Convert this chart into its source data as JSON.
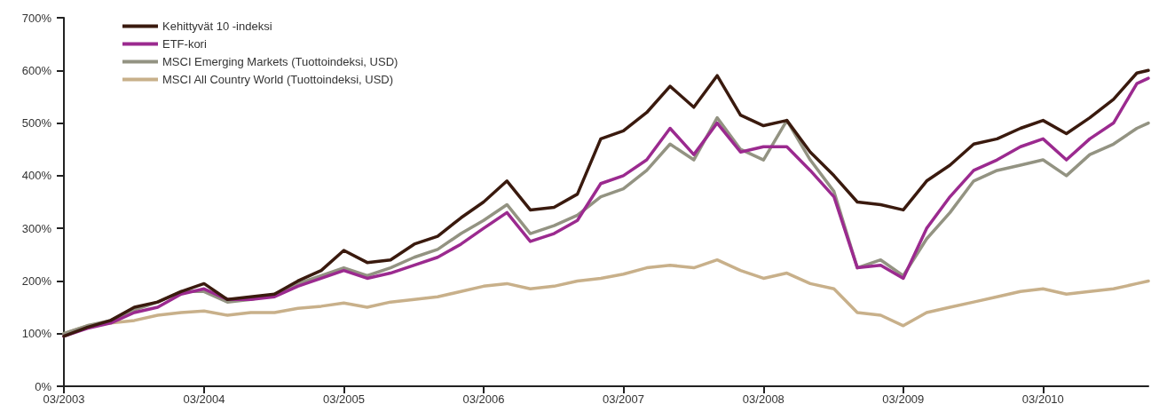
{
  "chart_data": {
    "type": "line",
    "x": [
      "2003-03",
      "2003-05",
      "2003-07",
      "2003-09",
      "2003-11",
      "2004-01",
      "2004-03",
      "2004-05",
      "2004-07",
      "2004-09",
      "2004-11",
      "2005-01",
      "2005-03",
      "2005-05",
      "2005-07",
      "2005-09",
      "2005-11",
      "2006-01",
      "2006-03",
      "2006-05",
      "2006-07",
      "2006-09",
      "2006-11",
      "2007-01",
      "2007-03",
      "2007-05",
      "2007-07",
      "2007-09",
      "2007-11",
      "2008-01",
      "2008-03",
      "2008-05",
      "2008-07",
      "2008-09",
      "2008-11",
      "2009-01",
      "2009-03",
      "2009-05",
      "2009-07",
      "2009-09",
      "2009-11",
      "2010-01",
      "2010-03",
      "2010-05",
      "2010-07",
      "2010-09",
      "2010-11",
      "2010-12"
    ],
    "series": [
      {
        "name": "Kehittyvät 10 -indeksi",
        "color": "#3a1a0e",
        "values": [
          95,
          112,
          125,
          150,
          160,
          180,
          195,
          165,
          170,
          175,
          200,
          220,
          258,
          235,
          240,
          270,
          285,
          320,
          350,
          390,
          335,
          340,
          365,
          470,
          485,
          520,
          570,
          530,
          590,
          515,
          495,
          505,
          445,
          400,
          350,
          345,
          335,
          390,
          420,
          460,
          470,
          490,
          505,
          480,
          510,
          545,
          595,
          600
        ]
      },
      {
        "name": "ETF-kori",
        "color": "#9b2a8f",
        "values": [
          95,
          110,
          120,
          140,
          150,
          175,
          185,
          165,
          165,
          170,
          190,
          205,
          220,
          205,
          215,
          230,
          245,
          270,
          300,
          330,
          275,
          290,
          315,
          385,
          400,
          430,
          490,
          440,
          500,
          445,
          455,
          455,
          410,
          360,
          225,
          230,
          205,
          300,
          360,
          410,
          430,
          455,
          470,
          430,
          470,
          500,
          575,
          585
        ]
      },
      {
        "name": "MSCI Emerging Markets (Tuottoindeksi, USD)",
        "color": "#939382",
        "values": [
          100,
          115,
          125,
          145,
          160,
          180,
          180,
          160,
          165,
          175,
          195,
          210,
          225,
          210,
          225,
          245,
          260,
          290,
          315,
          345,
          290,
          305,
          325,
          360,
          375,
          410,
          460,
          430,
          510,
          450,
          430,
          505,
          430,
          370,
          225,
          240,
          210,
          280,
          330,
          390,
          410,
          420,
          430,
          400,
          440,
          460,
          490,
          500
        ]
      },
      {
        "name": "MSCI All Country World (Tuottoindeksi, USD)",
        "color": "#c8b08a",
        "values": [
          100,
          115,
          120,
          125,
          135,
          140,
          143,
          135,
          140,
          140,
          148,
          152,
          158,
          150,
          160,
          165,
          170,
          180,
          190,
          195,
          185,
          190,
          200,
          205,
          213,
          225,
          230,
          225,
          240,
          220,
          205,
          215,
          195,
          185,
          140,
          135,
          115,
          140,
          150,
          160,
          170,
          180,
          185,
          175,
          180,
          185,
          195,
          200
        ]
      }
    ],
    "xlim": [
      "2003-03",
      "2010-12"
    ],
    "xticks": [
      {
        "value": "2003-03",
        "label": "03/2003"
      },
      {
        "value": "2004-03",
        "label": "03/2004"
      },
      {
        "value": "2005-03",
        "label": "03/2005"
      },
      {
        "value": "2006-03",
        "label": "03/2006"
      },
      {
        "value": "2007-03",
        "label": "03/2007"
      },
      {
        "value": "2008-03",
        "label": "03/2008"
      },
      {
        "value": "2009-03",
        "label": "03/2009"
      },
      {
        "value": "2010-03",
        "label": "03/2010"
      }
    ],
    "ylim": [
      0,
      700
    ],
    "yticks": [
      {
        "value": 0,
        "label": "0%"
      },
      {
        "value": 100,
        "label": "100%"
      },
      {
        "value": 200,
        "label": "200%"
      },
      {
        "value": 300,
        "label": "300%"
      },
      {
        "value": 400,
        "label": "400%"
      },
      {
        "value": 500,
        "label": "500%"
      },
      {
        "value": 600,
        "label": "600%"
      },
      {
        "value": 700,
        "label": "700%"
      }
    ],
    "grid": false,
    "legend": "top left",
    "marker": "none",
    "line_style": "solid"
  }
}
